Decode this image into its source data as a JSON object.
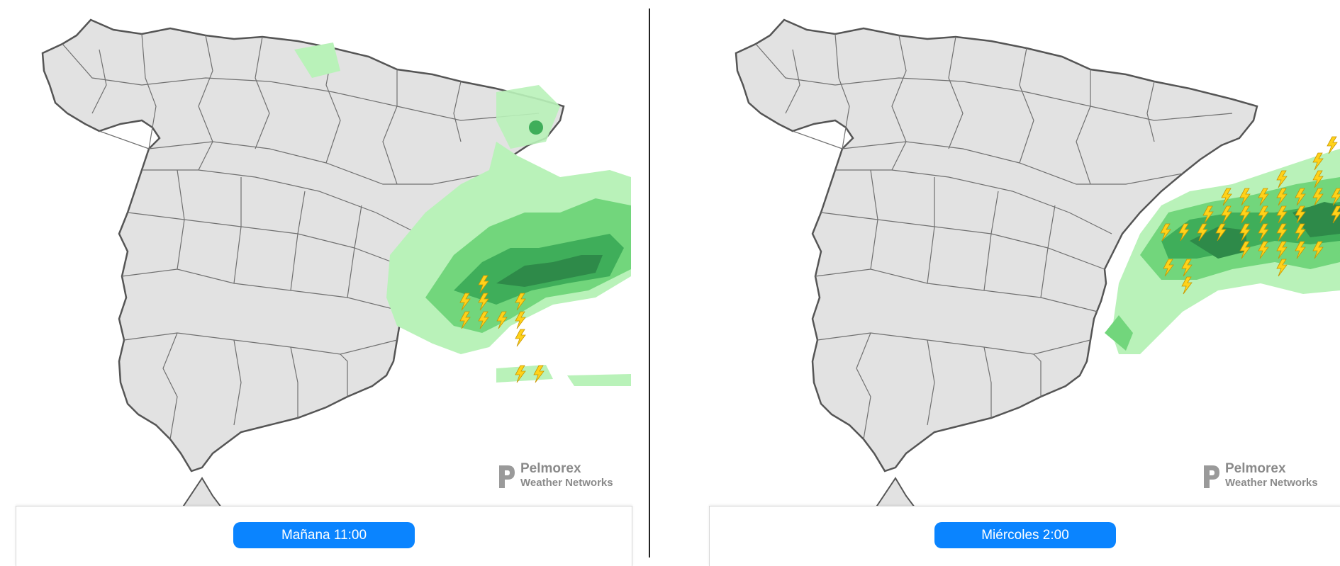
{
  "panels": [
    {
      "time_label": "Mañana 11:00",
      "brand": {
        "name": "Pelmorex",
        "subtitle": "Weather Networks"
      }
    },
    {
      "time_label": "Miércoles 2:00",
      "brand": {
        "name": "Pelmorex",
        "subtitle": "Weather Networks"
      }
    }
  ],
  "colors": {
    "land": "#e2e2e2",
    "border": "#555555",
    "sea": "#ffffff",
    "precip_light": "#b9f2b9",
    "precip_medium": "#72d67c",
    "precip_heavy": "#3fae5a",
    "precip_intense": "#2e8a49",
    "lightning": "#ffd21a",
    "pill": "#0a84ff"
  },
  "legend_icons": [
    "lightning-icon",
    "pelmorex-logo-icon"
  ]
}
